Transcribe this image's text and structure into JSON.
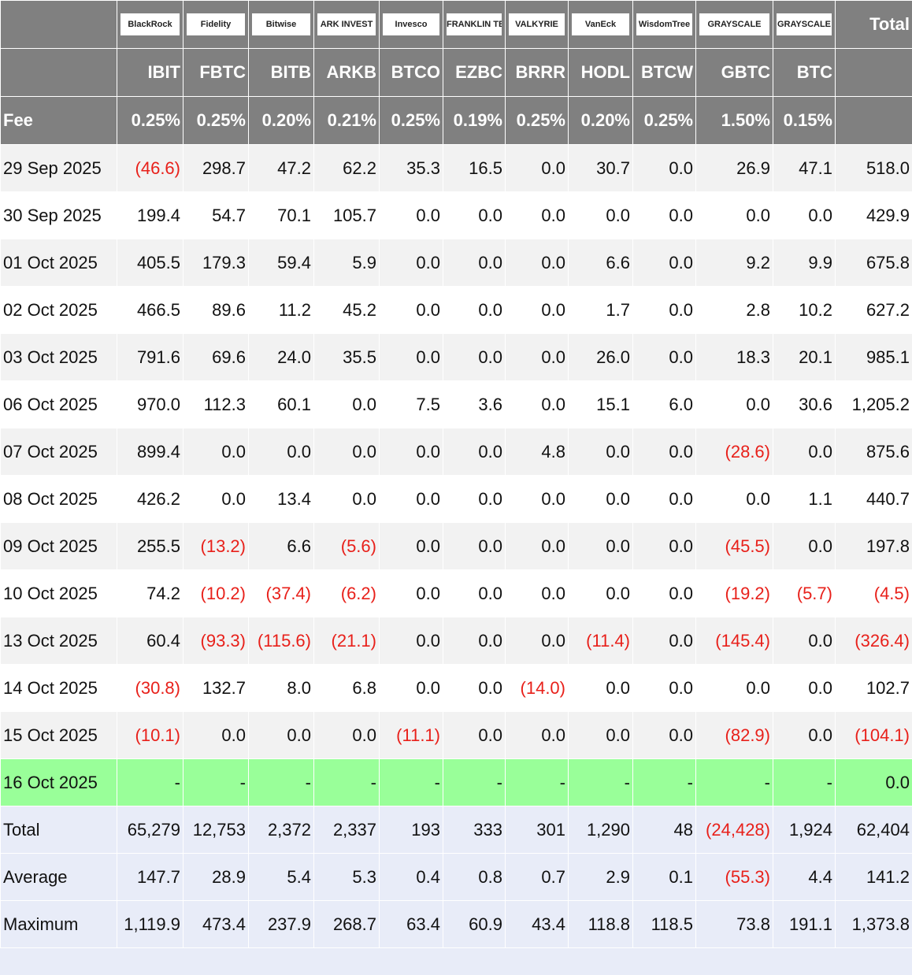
{
  "header": {
    "logos": [
      "BlackRock",
      "Fidelity",
      "Bitwise",
      "ARK INVEST",
      "Invesco",
      "FRANKLIN TEMPLETON",
      "VALKYRIE",
      "VanEck",
      "WisdomTree",
      "GRAYSCALE",
      "GRAYSCALE"
    ],
    "total": "Total"
  },
  "tickers": [
    "IBIT",
    "FBTC",
    "BITB",
    "ARKB",
    "BTCO",
    "EZBC",
    "BRRR",
    "HODL",
    "BTCW",
    "GBTC",
    "BTC"
  ],
  "fee": {
    "label": "Fee",
    "values": [
      "0.25%",
      "0.25%",
      "0.20%",
      "0.21%",
      "0.25%",
      "0.19%",
      "0.25%",
      "0.20%",
      "0.25%",
      "1.50%",
      "0.15%"
    ]
  },
  "rows": [
    {
      "date": "29 Sep 2025",
      "values": [
        "(46.6)",
        "298.7",
        "47.2",
        "62.2",
        "35.3",
        "16.5",
        "0.0",
        "30.7",
        "0.0",
        "26.9",
        "47.1",
        "518.0"
      ]
    },
    {
      "date": "30 Sep 2025",
      "values": [
        "199.4",
        "54.7",
        "70.1",
        "105.7",
        "0.0",
        "0.0",
        "0.0",
        "0.0",
        "0.0",
        "0.0",
        "0.0",
        "429.9"
      ]
    },
    {
      "date": "01 Oct 2025",
      "values": [
        "405.5",
        "179.3",
        "59.4",
        "5.9",
        "0.0",
        "0.0",
        "0.0",
        "6.6",
        "0.0",
        "9.2",
        "9.9",
        "675.8"
      ]
    },
    {
      "date": "02 Oct 2025",
      "values": [
        "466.5",
        "89.6",
        "11.2",
        "45.2",
        "0.0",
        "0.0",
        "0.0",
        "1.7",
        "0.0",
        "2.8",
        "10.2",
        "627.2"
      ]
    },
    {
      "date": "03 Oct 2025",
      "values": [
        "791.6",
        "69.6",
        "24.0",
        "35.5",
        "0.0",
        "0.0",
        "0.0",
        "26.0",
        "0.0",
        "18.3",
        "20.1",
        "985.1"
      ]
    },
    {
      "date": "06 Oct 2025",
      "values": [
        "970.0",
        "112.3",
        "60.1",
        "0.0",
        "7.5",
        "3.6",
        "0.0",
        "15.1",
        "6.0",
        "0.0",
        "30.6",
        "1,205.2"
      ]
    },
    {
      "date": "07 Oct 2025",
      "values": [
        "899.4",
        "0.0",
        "0.0",
        "0.0",
        "0.0",
        "0.0",
        "4.8",
        "0.0",
        "0.0",
        "(28.6)",
        "0.0",
        "875.6"
      ]
    },
    {
      "date": "08 Oct 2025",
      "values": [
        "426.2",
        "0.0",
        "13.4",
        "0.0",
        "0.0",
        "0.0",
        "0.0",
        "0.0",
        "0.0",
        "0.0",
        "1.1",
        "440.7"
      ]
    },
    {
      "date": "09 Oct 2025",
      "values": [
        "255.5",
        "(13.2)",
        "6.6",
        "(5.6)",
        "0.0",
        "0.0",
        "0.0",
        "0.0",
        "0.0",
        "(45.5)",
        "0.0",
        "197.8"
      ]
    },
    {
      "date": "10 Oct 2025",
      "values": [
        "74.2",
        "(10.2)",
        "(37.4)",
        "(6.2)",
        "0.0",
        "0.0",
        "0.0",
        "0.0",
        "0.0",
        "(19.2)",
        "(5.7)",
        "(4.5)"
      ]
    },
    {
      "date": "13 Oct 2025",
      "values": [
        "60.4",
        "(93.3)",
        "(115.6)",
        "(21.1)",
        "0.0",
        "0.0",
        "0.0",
        "(11.4)",
        "0.0",
        "(145.4)",
        "0.0",
        "(326.4)"
      ]
    },
    {
      "date": "14 Oct 2025",
      "values": [
        "(30.8)",
        "132.7",
        "8.0",
        "6.8",
        "0.0",
        "0.0",
        "(14.0)",
        "0.0",
        "0.0",
        "0.0",
        "0.0",
        "102.7"
      ]
    },
    {
      "date": "15 Oct 2025",
      "values": [
        "(10.1)",
        "0.0",
        "0.0",
        "0.0",
        "(11.1)",
        "0.0",
        "0.0",
        "0.0",
        "0.0",
        "(82.9)",
        "0.0",
        "(104.1)"
      ]
    },
    {
      "date": "16 Oct 2025",
      "values": [
        "-",
        "-",
        "-",
        "-",
        "-",
        "-",
        "-",
        "-",
        "-",
        "-",
        "-",
        "0.0"
      ]
    }
  ],
  "summary": [
    {
      "label": "Total",
      "values": [
        "65,279",
        "12,753",
        "2,372",
        "2,337",
        "193",
        "333",
        "301",
        "1,290",
        "48",
        "(24,428)",
        "1,924",
        "62,404"
      ]
    },
    {
      "label": "Average",
      "values": [
        "147.7",
        "28.9",
        "5.4",
        "5.3",
        "0.4",
        "0.8",
        "0.7",
        "2.9",
        "0.1",
        "(55.3)",
        "4.4",
        "141.2"
      ]
    },
    {
      "label": "Maximum",
      "values": [
        "1,119.9",
        "473.4",
        "237.9",
        "268.7",
        "63.4",
        "60.9",
        "43.4",
        "118.8",
        "118.5",
        "73.8",
        "191.1",
        "1,373.8"
      ]
    }
  ]
}
